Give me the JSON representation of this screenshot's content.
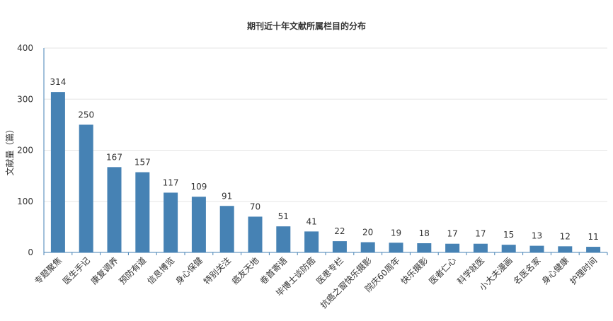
{
  "chart_data": {
    "type": "bar",
    "title": "期刊近十年文献所属栏目的分布",
    "xlabel": "",
    "ylabel": "文献量（篇）",
    "ylim": [
      0,
      400
    ],
    "yticks": [
      0,
      100,
      200,
      300,
      400
    ],
    "grid": true,
    "bar_color": "#4682b4",
    "categories": [
      "专题聚焦",
      "医生手记",
      "康复调养",
      "预防有道",
      "信息博览",
      "身心保健",
      "特别关注",
      "癌友天地",
      "卷首寄语",
      "毕博士谈防癌",
      "医患专栏",
      "抗癌之窗快乐摄影",
      "院庆60周年",
      "快乐摄影",
      "医者仁心",
      "科学就医",
      "小大夫漫画",
      "名医名家",
      "身心健康",
      "护理时间"
    ],
    "values": [
      314,
      250,
      167,
      157,
      117,
      109,
      91,
      70,
      51,
      41,
      22,
      20,
      19,
      18,
      17,
      17,
      15,
      13,
      12,
      11
    ]
  }
}
